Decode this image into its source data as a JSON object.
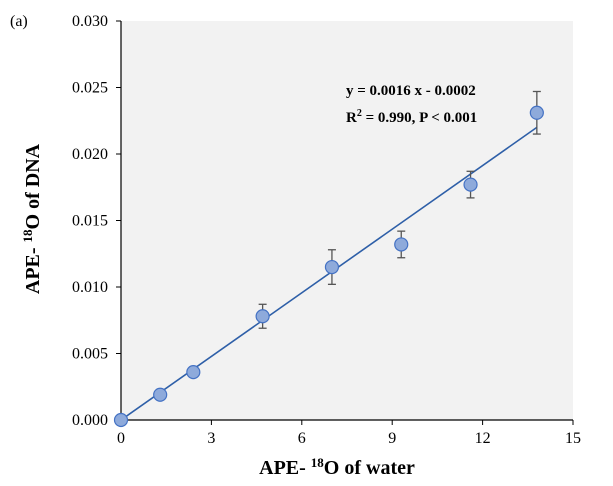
{
  "panel_label": "(a)",
  "chart_data": {
    "type": "scatter",
    "xlabel_main": "APE- ",
    "xlabel_sup": "18",
    "xlabel_rest": "O of water",
    "ylabel_main": "APE- ",
    "ylabel_sup": "18",
    "ylabel_rest": "O of DNA",
    "xlim": [
      0,
      15
    ],
    "ylim": [
      0,
      0.03
    ],
    "xticks": [
      0,
      3,
      6,
      9,
      12,
      15
    ],
    "xtick_labels": [
      "0",
      "3",
      "6",
      "9",
      "12",
      "15"
    ],
    "yticks": [
      0,
      0.005,
      0.01,
      0.015,
      0.02,
      0.025,
      0.03
    ],
    "ytick_labels": [
      "0.000",
      "0.005",
      "0.010",
      "0.015",
      "0.020",
      "0.025",
      "0.030"
    ],
    "grid": false,
    "points": [
      {
        "x": 0.0,
        "y": 0.0,
        "err": 0.0
      },
      {
        "x": 1.3,
        "y": 0.0019,
        "err": 0.0
      },
      {
        "x": 2.4,
        "y": 0.0036,
        "err": 0.0
      },
      {
        "x": 4.7,
        "y": 0.0078,
        "err": 0.0009
      },
      {
        "x": 7.0,
        "y": 0.0115,
        "err": 0.0013
      },
      {
        "x": 9.3,
        "y": 0.0132,
        "err": 0.001
      },
      {
        "x": 11.6,
        "y": 0.0177,
        "err": 0.001
      },
      {
        "x": 13.8,
        "y": 0.0231,
        "err": 0.0016
      }
    ],
    "fit": {
      "x": [
        0,
        13.8
      ],
      "y": [
        0.0,
        0.022
      ]
    },
    "equation": "y = 0.0016 x - 0.0002",
    "r2_main": "R",
    "r2_sup": "2",
    "r2_rest": " = 0.990, P < 0.001",
    "colors": {
      "plot_bg": "#f2f2f2",
      "marker_fill": "#8eaadb",
      "marker_stroke": "#4472c4",
      "line": "#2e5fa8",
      "error_bar": "#555555"
    }
  }
}
